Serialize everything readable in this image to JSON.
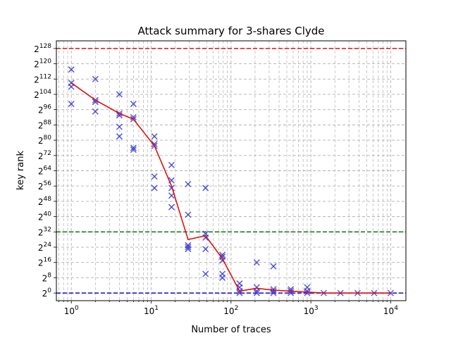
{
  "chart_data": {
    "type": "scatter",
    "title": "Attack summary for 3-shares Clyde",
    "xlabel": "Number of traces",
    "ylabel": "key rank",
    "x_scale": "log10",
    "xlim": [
      0.65,
      15500
    ],
    "x_ticks": [
      {
        "value": 1,
        "base": "10",
        "exp": "0"
      },
      {
        "value": 10,
        "base": "10",
        "exp": "1"
      },
      {
        "value": 100,
        "base": "10",
        "exp": "2"
      },
      {
        "value": 1000,
        "base": "10",
        "exp": "3"
      },
      {
        "value": 10000,
        "base": "10",
        "exp": "4"
      }
    ],
    "y_scale": "log2",
    "ylim": [
      -4,
      132
    ],
    "y_ticks": [
      {
        "value": 0,
        "base": "2",
        "exp": "0"
      },
      {
        "value": 8,
        "base": "2",
        "exp": "8"
      },
      {
        "value": 16,
        "base": "2",
        "exp": "16"
      },
      {
        "value": 24,
        "base": "2",
        "exp": "24"
      },
      {
        "value": 32,
        "base": "2",
        "exp": "32"
      },
      {
        "value": 40,
        "base": "2",
        "exp": "40"
      },
      {
        "value": 48,
        "base": "2",
        "exp": "48"
      },
      {
        "value": 56,
        "base": "2",
        "exp": "56"
      },
      {
        "value": 64,
        "base": "2",
        "exp": "64"
      },
      {
        "value": 72,
        "base": "2",
        "exp": "72"
      },
      {
        "value": 80,
        "base": "2",
        "exp": "80"
      },
      {
        "value": 88,
        "base": "2",
        "exp": "88"
      },
      {
        "value": 96,
        "base": "2",
        "exp": "96"
      },
      {
        "value": 104,
        "base": "2",
        "exp": "104"
      },
      {
        "value": 112,
        "base": "2",
        "exp": "112"
      },
      {
        "value": 120,
        "base": "2",
        "exp": "120"
      },
      {
        "value": 128,
        "base": "2",
        "exp": "128"
      }
    ],
    "grid": true,
    "colors": {
      "scatter": "#3b3bd6",
      "median_line": "#e01010",
      "line_128": "#d62728",
      "line_32": "#1a7f1a",
      "line_0": "#1f1fcc",
      "grid": "#b0b0b0"
    },
    "reference_lines": [
      {
        "y": 128,
        "color": "#d62728"
      },
      {
        "y": 32,
        "color": "#1a7f1a"
      },
      {
        "y": 0,
        "color": "#1f1fcc"
      }
    ],
    "scatter_points": [
      {
        "x": 1,
        "y": 117
      },
      {
        "x": 1,
        "y": 110
      },
      {
        "x": 1,
        "y": 108
      },
      {
        "x": 1,
        "y": 99
      },
      {
        "x": 2,
        "y": 112
      },
      {
        "x": 2,
        "y": 101
      },
      {
        "x": 2,
        "y": 100
      },
      {
        "x": 2,
        "y": 95
      },
      {
        "x": 4,
        "y": 104
      },
      {
        "x": 4,
        "y": 94
      },
      {
        "x": 4,
        "y": 93
      },
      {
        "x": 4,
        "y": 87
      },
      {
        "x": 4,
        "y": 82
      },
      {
        "x": 6,
        "y": 99
      },
      {
        "x": 6,
        "y": 92
      },
      {
        "x": 6,
        "y": 91
      },
      {
        "x": 6,
        "y": 76
      },
      {
        "x": 6,
        "y": 75
      },
      {
        "x": 11,
        "y": 82
      },
      {
        "x": 11,
        "y": 78
      },
      {
        "x": 11,
        "y": 77
      },
      {
        "x": 11,
        "y": 61
      },
      {
        "x": 11,
        "y": 55
      },
      {
        "x": 18,
        "y": 67
      },
      {
        "x": 18,
        "y": 59
      },
      {
        "x": 18,
        "y": 55
      },
      {
        "x": 18,
        "y": 51
      },
      {
        "x": 18,
        "y": 45
      },
      {
        "x": 29,
        "y": 57
      },
      {
        "x": 29,
        "y": 41
      },
      {
        "x": 29,
        "y": 25
      },
      {
        "x": 29,
        "y": 24
      },
      {
        "x": 29,
        "y": 23
      },
      {
        "x": 48,
        "y": 55
      },
      {
        "x": 48,
        "y": 31
      },
      {
        "x": 48,
        "y": 29
      },
      {
        "x": 48,
        "y": 23
      },
      {
        "x": 48,
        "y": 10
      },
      {
        "x": 78,
        "y": 20
      },
      {
        "x": 78,
        "y": 19
      },
      {
        "x": 78,
        "y": 17
      },
      {
        "x": 78,
        "y": 10
      },
      {
        "x": 78,
        "y": 8
      },
      {
        "x": 128,
        "y": 5
      },
      {
        "x": 128,
        "y": 3
      },
      {
        "x": 128,
        "y": 1
      },
      {
        "x": 128,
        "y": 0
      },
      {
        "x": 210,
        "y": 16
      },
      {
        "x": 210,
        "y": 3
      },
      {
        "x": 210,
        "y": 1
      },
      {
        "x": 210,
        "y": 0
      },
      {
        "x": 340,
        "y": 14
      },
      {
        "x": 340,
        "y": 2
      },
      {
        "x": 340,
        "y": 1
      },
      {
        "x": 340,
        "y": 0
      },
      {
        "x": 560,
        "y": 2
      },
      {
        "x": 560,
        "y": 1
      },
      {
        "x": 560,
        "y": 0
      },
      {
        "x": 900,
        "y": 3
      },
      {
        "x": 900,
        "y": 1
      },
      {
        "x": 900,
        "y": 0
      },
      {
        "x": 1450,
        "y": 0
      },
      {
        "x": 2350,
        "y": 0
      },
      {
        "x": 3850,
        "y": 0
      },
      {
        "x": 6200,
        "y": 0
      },
      {
        "x": 10000,
        "y": 0
      }
    ],
    "median_line": {
      "x": [
        1,
        2,
        4,
        6,
        11,
        18,
        29,
        48,
        78,
        128,
        210,
        340,
        560,
        900,
        1450,
        2350,
        3850,
        6200,
        10000
      ],
      "y": [
        110,
        101,
        94,
        91,
        77,
        56,
        28,
        30,
        18,
        1,
        2.5,
        1.5,
        1,
        0.5,
        0,
        0,
        0,
        0,
        0
      ]
    }
  }
}
